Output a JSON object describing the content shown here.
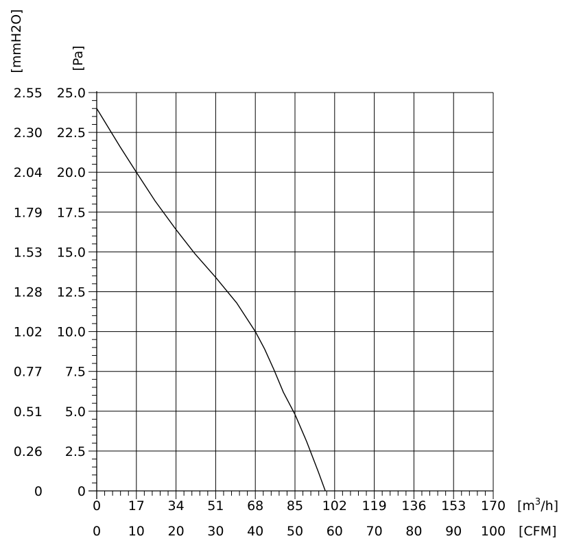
{
  "chart_data": {
    "type": "line",
    "title": "",
    "y_axes": {
      "left_outer": {
        "label": "[mmH2O]",
        "ticks": [
          "0",
          "0.26",
          "0.51",
          "0.77",
          "1.02",
          "1.28",
          "1.53",
          "1.79",
          "2.04",
          "2.30",
          "2.55"
        ]
      },
      "left_inner": {
        "label": "[Pa]",
        "ticks": [
          "0",
          "2.5",
          "5.0",
          "7.5",
          "10.0",
          "12.5",
          "15.0",
          "17.5",
          "20.0",
          "22.5",
          "25.0"
        ],
        "range": [
          0,
          25
        ]
      }
    },
    "x_axes": {
      "primary": {
        "unit_label": "[m³/h]",
        "ticks": [
          "0",
          "17",
          "34",
          "51",
          "68",
          "85",
          "102",
          "119",
          "136",
          "153",
          "170"
        ],
        "range": [
          0,
          170
        ]
      },
      "secondary": {
        "unit_label": "[CFM]",
        "ticks": [
          "0",
          "10",
          "20",
          "30",
          "40",
          "50",
          "60",
          "70",
          "80",
          "90",
          "100"
        ]
      }
    },
    "grid": true,
    "series": [
      {
        "x": [
          0,
          10,
          17,
          25,
          34,
          42,
          51,
          60,
          68,
          72,
          76,
          80,
          85,
          90,
          95,
          98
        ],
        "y": [
          24.0,
          21.6,
          20.0,
          18.2,
          16.4,
          14.9,
          13.4,
          11.8,
          10.0,
          8.9,
          7.6,
          6.2,
          4.8,
          3.1,
          1.2,
          0
        ]
      }
    ]
  }
}
